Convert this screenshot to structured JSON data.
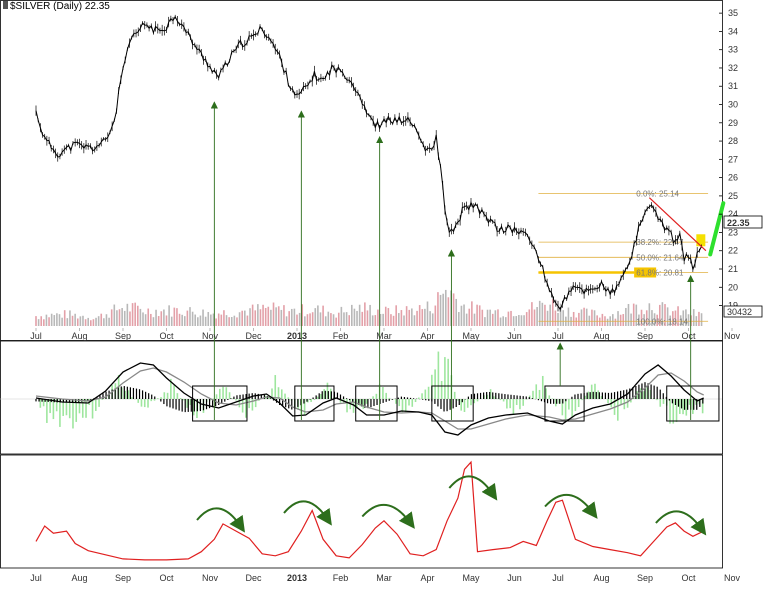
{
  "chart_data": {
    "type": "stock-chart",
    "title": "$SILVER (Daily) 22.35",
    "last_price": "22.35",
    "volume_label": "30432",
    "x_labels": [
      "Jul",
      "Aug",
      "Sep",
      "Oct",
      "Nov",
      "Dec",
      "2013",
      "Feb",
      "Mar",
      "Apr",
      "May",
      "Jun",
      "Jul",
      "Aug",
      "Sep",
      "Oct",
      "Nov"
    ],
    "y_ticks": [
      35,
      34,
      33,
      32,
      31,
      30,
      29,
      28,
      27,
      26,
      25,
      24,
      23,
      22,
      21,
      20,
      19
    ],
    "ylim": [
      18.1,
      35.5
    ],
    "price_series": [
      {
        "m": 0.0,
        "p": 29.6
      },
      {
        "m": 0.2,
        "p": 28.1
      },
      {
        "m": 0.5,
        "p": 27.3
      },
      {
        "m": 0.9,
        "p": 27.8
      },
      {
        "m": 1.3,
        "p": 27.6
      },
      {
        "m": 1.6,
        "p": 28.0
      },
      {
        "m": 1.8,
        "p": 29.1
      },
      {
        "m": 2.0,
        "p": 32.0
      },
      {
        "m": 2.2,
        "p": 33.6
      },
      {
        "m": 2.5,
        "p": 34.4
      },
      {
        "m": 2.8,
        "p": 34.0
      },
      {
        "m": 3.0,
        "p": 34.3
      },
      {
        "m": 3.2,
        "p": 34.9
      },
      {
        "m": 3.5,
        "p": 33.8
      },
      {
        "m": 3.8,
        "p": 32.7
      },
      {
        "m": 4.0,
        "p": 32.1
      },
      {
        "m": 4.2,
        "p": 31.5
      },
      {
        "m": 4.45,
        "p": 32.5
      },
      {
        "m": 4.7,
        "p": 33.3
      },
      {
        "m": 5.0,
        "p": 33.7
      },
      {
        "m": 5.2,
        "p": 34.2
      },
      {
        "m": 5.4,
        "p": 33.5
      },
      {
        "m": 5.6,
        "p": 32.6
      },
      {
        "m": 5.8,
        "p": 31.3
      },
      {
        "m": 6.0,
        "p": 30.4
      },
      {
        "m": 6.2,
        "p": 30.9
      },
      {
        "m": 6.4,
        "p": 31.6
      },
      {
        "m": 6.6,
        "p": 31.3
      },
      {
        "m": 6.8,
        "p": 32.0
      },
      {
        "m": 7.1,
        "p": 31.7
      },
      {
        "m": 7.3,
        "p": 31.1
      },
      {
        "m": 7.5,
        "p": 30.2
      },
      {
        "m": 7.7,
        "p": 29.1
      },
      {
        "m": 7.9,
        "p": 28.8
      },
      {
        "m": 8.1,
        "p": 29.2
      },
      {
        "m": 8.3,
        "p": 29.1
      },
      {
        "m": 8.5,
        "p": 29.2
      },
      {
        "m": 8.7,
        "p": 28.8
      },
      {
        "m": 8.85,
        "p": 28.0
      },
      {
        "m": 9.0,
        "p": 27.4
      },
      {
        "m": 9.1,
        "p": 27.5
      },
      {
        "m": 9.2,
        "p": 28.2
      },
      {
        "m": 9.3,
        "p": 26.5
      },
      {
        "m": 9.45,
        "p": 23.4
      },
      {
        "m": 9.6,
        "p": 22.9
      },
      {
        "m": 9.8,
        "p": 24.2
      },
      {
        "m": 10.0,
        "p": 24.5
      },
      {
        "m": 10.3,
        "p": 24.0
      },
      {
        "m": 10.6,
        "p": 23.2
      },
      {
        "m": 10.9,
        "p": 23.2
      },
      {
        "m": 11.2,
        "p": 23.0
      },
      {
        "m": 11.4,
        "p": 22.4
      },
      {
        "m": 11.55,
        "p": 21.7
      },
      {
        "m": 11.7,
        "p": 20.5
      },
      {
        "m": 11.85,
        "p": 19.7
      },
      {
        "m": 12.0,
        "p": 18.8
      },
      {
        "m": 12.2,
        "p": 19.5
      },
      {
        "m": 12.4,
        "p": 20.0
      },
      {
        "m": 12.6,
        "p": 19.8
      },
      {
        "m": 12.8,
        "p": 19.9
      },
      {
        "m": 13.0,
        "p": 20.2
      },
      {
        "m": 13.2,
        "p": 19.6
      },
      {
        "m": 13.4,
        "p": 20.1
      },
      {
        "m": 13.55,
        "p": 20.9
      },
      {
        "m": 13.7,
        "p": 21.8
      },
      {
        "m": 13.85,
        "p": 23.1
      },
      {
        "m": 14.0,
        "p": 23.9
      },
      {
        "m": 14.1,
        "p": 24.6
      },
      {
        "m": 14.2,
        "p": 24.3
      },
      {
        "m": 14.35,
        "p": 23.6
      },
      {
        "m": 14.5,
        "p": 23.1
      },
      {
        "m": 14.6,
        "p": 22.9
      },
      {
        "m": 14.7,
        "p": 22.4
      },
      {
        "m": 14.8,
        "p": 22.9
      },
      {
        "m": 14.9,
        "p": 21.5
      },
      {
        "m": 15.0,
        "p": 21.7
      },
      {
        "m": 15.1,
        "p": 21.0
      },
      {
        "m": 15.2,
        "p": 21.9
      },
      {
        "m": 15.35,
        "p": 22.4
      }
    ],
    "volume_ylim": [
      0,
      8000
    ],
    "volume_series": [
      {
        "m": 0.0,
        "v": 1200
      },
      {
        "m": 0.7,
        "v": 1400
      },
      {
        "m": 1.4,
        "v": 1000
      },
      {
        "m": 2.0,
        "v": 2300
      },
      {
        "m": 2.6,
        "v": 1800
      },
      {
        "m": 3.3,
        "v": 1900
      },
      {
        "m": 4.0,
        "v": 1500
      },
      {
        "m": 4.6,
        "v": 1700
      },
      {
        "m": 5.3,
        "v": 2100
      },
      {
        "m": 5.9,
        "v": 1800
      },
      {
        "m": 6.4,
        "v": 2000
      },
      {
        "m": 6.9,
        "v": 1600
      },
      {
        "m": 7.5,
        "v": 2200
      },
      {
        "m": 8.0,
        "v": 1700
      },
      {
        "m": 8.6,
        "v": 1900
      },
      {
        "m": 9.1,
        "v": 2300
      },
      {
        "m": 9.45,
        "v": 4600
      },
      {
        "m": 9.8,
        "v": 2400
      },
      {
        "m": 10.3,
        "v": 1800
      },
      {
        "m": 10.8,
        "v": 1700
      },
      {
        "m": 11.3,
        "v": 2000
      },
      {
        "m": 11.8,
        "v": 2800
      },
      {
        "m": 12.2,
        "v": 1900
      },
      {
        "m": 12.7,
        "v": 1500
      },
      {
        "m": 13.2,
        "v": 1300
      },
      {
        "m": 13.7,
        "v": 2200
      },
      {
        "m": 14.1,
        "v": 2500
      },
      {
        "m": 14.6,
        "v": 1800
      },
      {
        "m": 15.1,
        "v": 1500
      },
      {
        "m": 15.35,
        "v": 1200
      }
    ],
    "fibonacci": {
      "high": 25.14,
      "low": 18.14,
      "levels": [
        {
          "price": 25.14,
          "label": "0.0%: 25.14"
        },
        {
          "price": 22.47,
          "label": "38.2%: 22.47"
        },
        {
          "price": 21.64,
          "label": "50.0%: 21.64"
        },
        {
          "price": 20.81,
          "label": "61.8%: 20.81"
        },
        {
          "price": 18.14,
          "label": "100.0%: 18.14"
        }
      ],
      "highlight_color": "#f5c400",
      "line_color": "#e0b040"
    },
    "ppo": {
      "ylim": [
        -5,
        5
      ],
      "line_color": "#000000",
      "signal_color": "#888888",
      "histogram_color": "#000000",
      "macd": [
        {
          "m": 0.0,
          "v": 0.1
        },
        {
          "m": 0.6,
          "v": -0.3
        },
        {
          "m": 1.2,
          "v": -0.4
        },
        {
          "m": 1.6,
          "v": 0.8
        },
        {
          "m": 2.0,
          "v": 2.7
        },
        {
          "m": 2.4,
          "v": 3.6
        },
        {
          "m": 2.7,
          "v": 3.4
        },
        {
          "m": 3.0,
          "v": 2.1
        },
        {
          "m": 3.4,
          "v": 0.6
        },
        {
          "m": 3.8,
          "v": -0.5
        },
        {
          "m": 4.2,
          "v": -0.9
        },
        {
          "m": 4.6,
          "v": -0.3
        },
        {
          "m": 5.0,
          "v": 0.3
        },
        {
          "m": 5.3,
          "v": 0.5
        },
        {
          "m": 5.6,
          "v": -0.4
        },
        {
          "m": 5.9,
          "v": -1.7
        },
        {
          "m": 6.2,
          "v": -1.6
        },
        {
          "m": 6.6,
          "v": -0.4
        },
        {
          "m": 6.9,
          "v": 0.1
        },
        {
          "m": 7.3,
          "v": -0.6
        },
        {
          "m": 7.6,
          "v": -1.6
        },
        {
          "m": 8.0,
          "v": -1.6
        },
        {
          "m": 8.4,
          "v": -1.2
        },
        {
          "m": 8.8,
          "v": -1.3
        },
        {
          "m": 9.1,
          "v": -1.6
        },
        {
          "m": 9.4,
          "v": -3.3
        },
        {
          "m": 9.7,
          "v": -3.6
        },
        {
          "m": 10.0,
          "v": -2.6
        },
        {
          "m": 10.4,
          "v": -1.9
        },
        {
          "m": 10.8,
          "v": -1.6
        },
        {
          "m": 11.3,
          "v": -1.4
        },
        {
          "m": 11.8,
          "v": -2.2
        },
        {
          "m": 12.1,
          "v": -2.5
        },
        {
          "m": 12.4,
          "v": -1.6
        },
        {
          "m": 12.8,
          "v": -0.9
        },
        {
          "m": 13.2,
          "v": -0.5
        },
        {
          "m": 13.6,
          "v": 0.5
        },
        {
          "m": 14.0,
          "v": 2.5
        },
        {
          "m": 14.3,
          "v": 3.4
        },
        {
          "m": 14.6,
          "v": 2.3
        },
        {
          "m": 14.9,
          "v": 0.9
        },
        {
          "m": 15.2,
          "v": -0.2
        },
        {
          "m": 15.35,
          "v": 0.1
        }
      ],
      "signal": [
        {
          "m": 0.0,
          "v": 0.3
        },
        {
          "m": 0.6,
          "v": 0.0
        },
        {
          "m": 1.2,
          "v": -0.2
        },
        {
          "m": 1.6,
          "v": 0.2
        },
        {
          "m": 2.0,
          "v": 1.6
        },
        {
          "m": 2.4,
          "v": 2.8
        },
        {
          "m": 2.7,
          "v": 3.1
        },
        {
          "m": 3.0,
          "v": 2.7
        },
        {
          "m": 3.4,
          "v": 1.7
        },
        {
          "m": 3.8,
          "v": 0.5
        },
        {
          "m": 4.2,
          "v": -0.4
        },
        {
          "m": 4.6,
          "v": -0.6
        },
        {
          "m": 5.0,
          "v": -0.2
        },
        {
          "m": 5.3,
          "v": 0.2
        },
        {
          "m": 5.6,
          "v": 0.1
        },
        {
          "m": 5.9,
          "v": -0.8
        },
        {
          "m": 6.2,
          "v": -1.3
        },
        {
          "m": 6.6,
          "v": -1.1
        },
        {
          "m": 6.9,
          "v": -0.5
        },
        {
          "m": 7.3,
          "v": -0.3
        },
        {
          "m": 7.6,
          "v": -0.8
        },
        {
          "m": 8.0,
          "v": -1.3
        },
        {
          "m": 8.4,
          "v": -1.4
        },
        {
          "m": 8.8,
          "v": -1.3
        },
        {
          "m": 9.1,
          "v": -1.4
        },
        {
          "m": 9.4,
          "v": -2.2
        },
        {
          "m": 9.7,
          "v": -3.0
        },
        {
          "m": 10.0,
          "v": -3.0
        },
        {
          "m": 10.4,
          "v": -2.5
        },
        {
          "m": 10.8,
          "v": -2.0
        },
        {
          "m": 11.3,
          "v": -1.6
        },
        {
          "m": 11.8,
          "v": -1.8
        },
        {
          "m": 12.1,
          "v": -2.1
        },
        {
          "m": 12.4,
          "v": -2.0
        },
        {
          "m": 12.8,
          "v": -1.5
        },
        {
          "m": 13.2,
          "v": -1.0
        },
        {
          "m": 13.6,
          "v": -0.3
        },
        {
          "m": 14.0,
          "v": 1.1
        },
        {
          "m": 14.3,
          "v": 2.4
        },
        {
          "m": 14.6,
          "v": 2.6
        },
        {
          "m": 14.9,
          "v": 1.8
        },
        {
          "m": 15.2,
          "v": 0.7
        },
        {
          "m": 15.35,
          "v": 0.4
        }
      ],
      "volume_osc_color": "#9ee69e",
      "volume_osc": [
        {
          "m": 0.2,
          "v": -0.7
        },
        {
          "m": 0.8,
          "v": -0.9
        },
        {
          "m": 1.3,
          "v": -0.6
        },
        {
          "m": 1.9,
          "v": 0.8
        },
        {
          "m": 2.5,
          "v": -0.5
        },
        {
          "m": 3.1,
          "v": 0.6
        },
        {
          "m": 3.7,
          "v": -0.8
        },
        {
          "m": 4.3,
          "v": 0.5
        },
        {
          "m": 4.9,
          "v": -0.7
        },
        {
          "m": 5.5,
          "v": 0.7
        },
        {
          "m": 6.1,
          "v": -0.6
        },
        {
          "m": 6.7,
          "v": 0.5
        },
        {
          "m": 7.3,
          "v": -0.8
        },
        {
          "m": 7.9,
          "v": 0.5
        },
        {
          "m": 8.5,
          "v": -0.6
        },
        {
          "m": 9.1,
          "v": 0.7
        },
        {
          "m": 9.45,
          "v": 2.4
        },
        {
          "m": 9.8,
          "v": -1.1
        },
        {
          "m": 10.4,
          "v": 0.5
        },
        {
          "m": 11.0,
          "v": -0.8
        },
        {
          "m": 11.6,
          "v": 0.9
        },
        {
          "m": 12.2,
          "v": -1.0
        },
        {
          "m": 12.8,
          "v": 0.6
        },
        {
          "m": 13.4,
          "v": -0.7
        },
        {
          "m": 14.0,
          "v": 0.6
        },
        {
          "m": 14.6,
          "v": -0.9
        },
        {
          "m": 15.2,
          "v": -0.5
        }
      ]
    },
    "lower_indicator": {
      "ylim": [
        0,
        100
      ],
      "color": "#e02020",
      "series": [
        {
          "m": 0.0,
          "v": 20
        },
        {
          "m": 0.2,
          "v": 35
        },
        {
          "m": 0.4,
          "v": 28
        },
        {
          "m": 0.7,
          "v": 30
        },
        {
          "m": 0.9,
          "v": 18
        },
        {
          "m": 1.2,
          "v": 11
        },
        {
          "m": 1.6,
          "v": 7
        },
        {
          "m": 2.0,
          "v": 3
        },
        {
          "m": 2.5,
          "v": 2
        },
        {
          "m": 3.0,
          "v": 2
        },
        {
          "m": 3.5,
          "v": 3
        },
        {
          "m": 3.8,
          "v": 10
        },
        {
          "m": 4.1,
          "v": 22
        },
        {
          "m": 4.3,
          "v": 37
        },
        {
          "m": 4.6,
          "v": 30
        },
        {
          "m": 4.9,
          "v": 23
        },
        {
          "m": 5.2,
          "v": 8
        },
        {
          "m": 5.5,
          "v": 6
        },
        {
          "m": 5.8,
          "v": 10
        },
        {
          "m": 6.1,
          "v": 30
        },
        {
          "m": 6.35,
          "v": 50
        },
        {
          "m": 6.6,
          "v": 22
        },
        {
          "m": 6.9,
          "v": 6
        },
        {
          "m": 7.2,
          "v": 4
        },
        {
          "m": 7.5,
          "v": 17
        },
        {
          "m": 7.8,
          "v": 33
        },
        {
          "m": 8.0,
          "v": 40
        },
        {
          "m": 8.3,
          "v": 27
        },
        {
          "m": 8.6,
          "v": 8
        },
        {
          "m": 8.9,
          "v": 6
        },
        {
          "m": 9.2,
          "v": 12
        },
        {
          "m": 9.45,
          "v": 40
        },
        {
          "m": 9.7,
          "v": 62
        },
        {
          "m": 9.85,
          "v": 90
        },
        {
          "m": 10.0,
          "v": 97
        },
        {
          "m": 10.15,
          "v": 10
        },
        {
          "m": 10.5,
          "v": 12
        },
        {
          "m": 10.9,
          "v": 14
        },
        {
          "m": 11.2,
          "v": 20
        },
        {
          "m": 11.5,
          "v": 16
        },
        {
          "m": 11.75,
          "v": 40
        },
        {
          "m": 11.95,
          "v": 58
        },
        {
          "m": 12.1,
          "v": 60
        },
        {
          "m": 12.4,
          "v": 22
        },
        {
          "m": 12.8,
          "v": 15
        },
        {
          "m": 13.2,
          "v": 12
        },
        {
          "m": 13.6,
          "v": 9
        },
        {
          "m": 13.9,
          "v": 6
        },
        {
          "m": 14.2,
          "v": 20
        },
        {
          "m": 14.5,
          "v": 34
        },
        {
          "m": 14.7,
          "v": 38
        },
        {
          "m": 14.9,
          "v": 30
        },
        {
          "m": 15.1,
          "v": 25
        },
        {
          "m": 15.35,
          "v": 30
        }
      ]
    },
    "highlight_boxes": [
      {
        "m0": 3.6,
        "m1": 4.85
      },
      {
        "m0": 5.95,
        "m1": 6.85
      },
      {
        "m0": 7.35,
        "m1": 8.3
      },
      {
        "m0": 9.1,
        "m1": 10.05
      },
      {
        "m0": 11.7,
        "m1": 12.6
      },
      {
        "m0": 14.5,
        "m1": 15.7
      }
    ],
    "arrows_up": [
      {
        "m": 4.1,
        "from": "ppo",
        "to_price": 30.2
      },
      {
        "m": 6.1,
        "from": "ppo",
        "to_price": 29.7
      },
      {
        "m": 7.9,
        "from": "ppo",
        "to_price": 28.3
      },
      {
        "m": 9.55,
        "from": "ppo",
        "to_price": 22.1
      },
      {
        "m": 12.05,
        "from": "ppo_top",
        "to_ppo": true
      },
      {
        "m": 15.05,
        "from": "ppo",
        "to_price": 20.7
      }
    ],
    "curved_arrows": [
      {
        "m0": 3.7,
        "m1": 4.7,
        "peak": 48
      },
      {
        "m0": 5.7,
        "m1": 6.7,
        "peak": 62
      },
      {
        "m0": 7.5,
        "m1": 8.6,
        "peak": 55
      },
      {
        "m0": 9.5,
        "m1": 10.5,
        "peak": 112
      },
      {
        "m0": 11.7,
        "m1": 12.8,
        "peak": 75
      },
      {
        "m0": 14.25,
        "m1": 15.3,
        "peak": 42
      }
    ],
    "trend_arrow_color": "#2ee02e",
    "annotation_arrow_color": "#2d6e1c"
  }
}
